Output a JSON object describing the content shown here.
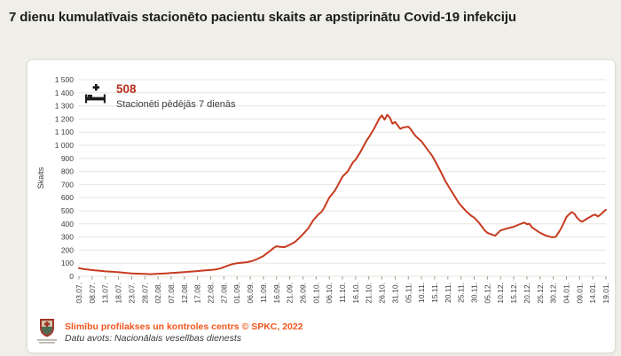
{
  "page": {
    "title": "7 dienu kumulatīvais stacionēto pacientu skaits ar apstiprinātu Covid-19 infekciju",
    "background_color": "#efeee8"
  },
  "annotation": {
    "value": "508",
    "label": "Stacionēti pēdējās 7 dienās",
    "icon": "hospital-bed-plus-icon",
    "value_color": "#b5301c"
  },
  "footer": {
    "logo": "spkc-coat-of-arms-logo",
    "source_line1": "Slimību profilakses un kontroles centrs © SPKC, 2022",
    "source_line2": "Datu avots: Nacionālais veselības dienests",
    "line1_color": "#f0561d"
  },
  "chart_data": {
    "type": "line",
    "title": "",
    "xlabel": "",
    "ylabel": "Skaits",
    "ylim": [
      0,
      1500
    ],
    "y_tick_step": 100,
    "grid": true,
    "legend": "none",
    "line_color": "#c63b20",
    "grid_color": "#e8e5dd",
    "axis_text_color": "#3c3c3b",
    "tick_mark_color": "#98968e",
    "x_tick_interval_days": 5,
    "x_range_days": [
      0,
      200
    ],
    "x_tick_labels": [
      "03.07.",
      "08.07.",
      "13.07.",
      "18.07.",
      "23.07.",
      "28.07.",
      "02.08.",
      "07.08.",
      "12.08.",
      "17.08.",
      "22.08.",
      "27.08.",
      "01.09.",
      "06.09.",
      "11.09.",
      "16.09.",
      "21.09.",
      "26.09.",
      "01.10.",
      "06.10.",
      "11.10.",
      "16.10.",
      "21.10.",
      "26.10.",
      "31.10.",
      "05.11.",
      "10.11.",
      "15.11.",
      "20.11.",
      "25.11.",
      "30.11.",
      "05.12.",
      "10.12.",
      "15.12.",
      "20.12.",
      "25.12.",
      "30.12.",
      "04.01.",
      "09.01.",
      "14.01.",
      "19.01."
    ],
    "series": [
      {
        "name": "Stacionēti pēdējās 7 dienās",
        "last_value": 508,
        "points": [
          [
            0,
            62
          ],
          [
            2,
            55
          ],
          [
            4,
            50
          ],
          [
            6,
            45
          ],
          [
            8,
            42
          ],
          [
            10,
            38
          ],
          [
            12,
            36
          ],
          [
            14,
            33
          ],
          [
            16,
            30
          ],
          [
            18,
            26
          ],
          [
            20,
            22
          ],
          [
            22,
            20
          ],
          [
            25,
            18
          ],
          [
            27,
            16
          ],
          [
            29,
            18
          ],
          [
            31,
            20
          ],
          [
            33,
            22
          ],
          [
            35,
            26
          ],
          [
            37,
            28
          ],
          [
            40,
            32
          ],
          [
            42,
            35
          ],
          [
            45,
            40
          ],
          [
            47,
            44
          ],
          [
            50,
            48
          ],
          [
            52,
            52
          ],
          [
            54,
            62
          ],
          [
            56,
            78
          ],
          [
            58,
            92
          ],
          [
            60,
            100
          ],
          [
            62,
            104
          ],
          [
            64,
            108
          ],
          [
            66,
            118
          ],
          [
            68,
            135
          ],
          [
            70,
            155
          ],
          [
            72,
            185
          ],
          [
            74,
            218
          ],
          [
            75,
            230
          ],
          [
            76,
            226
          ],
          [
            78,
            222
          ],
          [
            80,
            240
          ],
          [
            82,
            262
          ],
          [
            84,
            300
          ],
          [
            85,
            320
          ],
          [
            87,
            365
          ],
          [
            89,
            430
          ],
          [
            91,
            475
          ],
          [
            92,
            490
          ],
          [
            93,
            520
          ],
          [
            95,
            600
          ],
          [
            97,
            650
          ],
          [
            98,
            685
          ],
          [
            100,
            760
          ],
          [
            102,
            800
          ],
          [
            104,
            870
          ],
          [
            105,
            890
          ],
          [
            107,
            955
          ],
          [
            109,
            1030
          ],
          [
            110,
            1060
          ],
          [
            112,
            1125
          ],
          [
            114,
            1205
          ],
          [
            115,
            1228
          ],
          [
            116,
            1195
          ],
          [
            117,
            1232
          ],
          [
            118,
            1210
          ],
          [
            119,
            1165
          ],
          [
            120,
            1178
          ],
          [
            121,
            1150
          ],
          [
            122,
            1125
          ],
          [
            123,
            1135
          ],
          [
            125,
            1142
          ],
          [
            126,
            1120
          ],
          [
            127,
            1090
          ],
          [
            128,
            1065
          ],
          [
            130,
            1030
          ],
          [
            132,
            975
          ],
          [
            134,
            920
          ],
          [
            135,
            885
          ],
          [
            137,
            810
          ],
          [
            139,
            730
          ],
          [
            140,
            695
          ],
          [
            142,
            630
          ],
          [
            144,
            565
          ],
          [
            145,
            540
          ],
          [
            147,
            495
          ],
          [
            149,
            460
          ],
          [
            150,
            448
          ],
          [
            152,
            405
          ],
          [
            154,
            350
          ],
          [
            155,
            332
          ],
          [
            157,
            316
          ],
          [
            158,
            310
          ],
          [
            160,
            350
          ],
          [
            162,
            362
          ],
          [
            164,
            372
          ],
          [
            165,
            378
          ],
          [
            167,
            395
          ],
          [
            169,
            410
          ],
          [
            170,
            398
          ],
          [
            171,
            400
          ],
          [
            172,
            372
          ],
          [
            174,
            345
          ],
          [
            175,
            332
          ],
          [
            177,
            312
          ],
          [
            179,
            300
          ],
          [
            180,
            298
          ],
          [
            181,
            302
          ],
          [
            183,
            365
          ],
          [
            185,
            452
          ],
          [
            186,
            472
          ],
          [
            187,
            490
          ],
          [
            188,
            478
          ],
          [
            189,
            448
          ],
          [
            190,
            428
          ],
          [
            191,
            416
          ],
          [
            193,
            442
          ],
          [
            195,
            465
          ],
          [
            196,
            470
          ],
          [
            197,
            456
          ],
          [
            198,
            472
          ],
          [
            200,
            508
          ]
        ]
      }
    ]
  }
}
